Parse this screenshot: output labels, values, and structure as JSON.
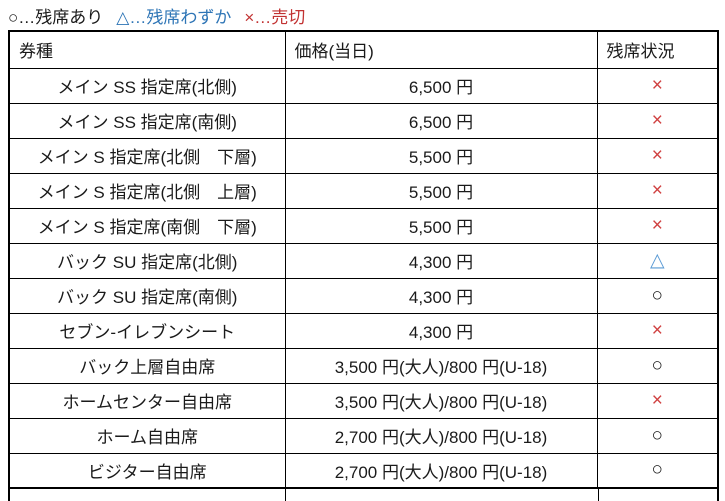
{
  "legend": [
    {
      "symbol": "○",
      "label": "残席あり",
      "text": "○…残席あり",
      "type": "available"
    },
    {
      "symbol": "△",
      "label": "残席わずか",
      "text": "△…残席わずか",
      "type": "few"
    },
    {
      "symbol": "×",
      "label": "売切",
      "text": "×…売切",
      "type": "sold_out"
    }
  ],
  "colors": {
    "legend_few_blue": "#2E75B6",
    "legend_sold_out_red": "#C23232",
    "status_available_black": "#1a1a1a",
    "status_few_blue": "#5B9BD5",
    "status_sold_out_red": "#D04040",
    "border": "#000000",
    "background": "#ffffff"
  },
  "table": {
    "headers": [
      "券種",
      "価格(当日)",
      "残席状況"
    ],
    "rows": [
      {
        "ticket": "メイン SS 指定席(北側)",
        "price": "6,500 円",
        "status": "×",
        "status_type": "sold_out"
      },
      {
        "ticket": "メイン SS 指定席(南側)",
        "price": "6,500 円",
        "status": "×",
        "status_type": "sold_out"
      },
      {
        "ticket": "メイン S 指定席(北側　下層)",
        "price": "5,500 円",
        "status": "×",
        "status_type": "sold_out"
      },
      {
        "ticket": "メイン S 指定席(北側　上層)",
        "price": "5,500 円",
        "status": "×",
        "status_type": "sold_out"
      },
      {
        "ticket": "メイン S 指定席(南側　下層)",
        "price": "5,500 円",
        "status": "×",
        "status_type": "sold_out"
      },
      {
        "ticket": "バック SU 指定席(北側)",
        "price": "4,300 円",
        "status": "△",
        "status_type": "few"
      },
      {
        "ticket": "バック SU 指定席(南側)",
        "price": "4,300 円",
        "status": "○",
        "status_type": "available"
      },
      {
        "ticket": "セブン-イレブンシート",
        "price": "4,300 円",
        "status": "×",
        "status_type": "sold_out"
      },
      {
        "ticket": "バック上層自由席",
        "price": "3,500 円(大人)/800 円(U-18)",
        "status": "○",
        "status_type": "available"
      },
      {
        "ticket": "ホームセンター自由席",
        "price": "3,500 円(大人)/800 円(U-18)",
        "status": "×",
        "status_type": "sold_out"
      },
      {
        "ticket": "ホーム自由席",
        "price": "2,700 円(大人)/800 円(U-18)",
        "status": "○",
        "status_type": "available"
      },
      {
        "ticket": "ビジター自由席",
        "price": "2,700 円(大人)/800 円(U-18)",
        "status": "○",
        "status_type": "available"
      }
    ]
  }
}
